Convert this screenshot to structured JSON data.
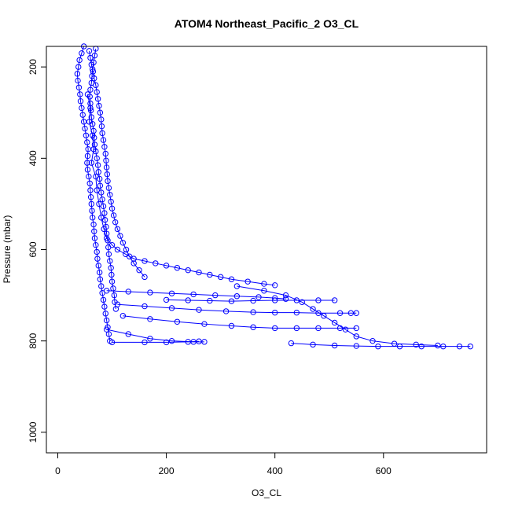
{
  "chart_data": {
    "type": "scatter",
    "title": "ATOM4 Northeast_Pacific_2 O3_CL",
    "xlabel": "O3_CL",
    "ylabel": "Pressure (mbar)",
    "xlim": [
      -21,
      790
    ],
    "ylim": [
      1045,
      155
    ],
    "y_reversed": true,
    "x_ticks": [
      0,
      200,
      400,
      600
    ],
    "y_ticks": [
      200,
      400,
      600,
      800,
      1000
    ],
    "grid": false,
    "legend": "none",
    "point_style": "open-circle-connected",
    "colors": {
      "series": "#0000ff",
      "axes": "#000000",
      "background": "#ffffff"
    },
    "series": [
      {
        "points": [
          [
            48,
            155
          ],
          [
            44,
            170
          ],
          [
            40,
            185
          ],
          [
            38,
            200
          ],
          [
            36,
            215
          ],
          [
            37,
            230
          ],
          [
            39,
            245
          ],
          [
            41,
            260
          ],
          [
            42,
            275
          ],
          [
            44,
            290
          ],
          [
            46,
            305
          ],
          [
            48,
            320
          ],
          [
            50,
            335
          ],
          [
            52,
            350
          ],
          [
            54,
            365
          ],
          [
            56,
            380
          ],
          [
            55,
            395
          ],
          [
            54,
            410
          ],
          [
            55,
            425
          ],
          [
            57,
            440
          ],
          [
            59,
            455
          ],
          [
            60,
            470
          ],
          [
            61,
            485
          ],
          [
            62,
            500
          ],
          [
            63,
            515
          ],
          [
            64,
            530
          ],
          [
            66,
            545
          ],
          [
            67,
            560
          ],
          [
            68,
            575
          ],
          [
            70,
            590
          ],
          [
            72,
            605
          ],
          [
            73,
            620
          ],
          [
            75,
            635
          ],
          [
            77,
            650
          ],
          [
            78,
            665
          ],
          [
            80,
            680
          ],
          [
            82,
            695
          ],
          [
            84,
            710
          ],
          [
            86,
            725
          ],
          [
            88,
            740
          ],
          [
            90,
            755
          ],
          [
            92,
            770
          ],
          [
            94,
            785
          ],
          [
            96,
            800
          ]
        ]
      },
      {
        "points": [
          [
            70,
            160
          ],
          [
            68,
            175
          ],
          [
            66,
            190
          ],
          [
            64,
            205
          ],
          [
            63,
            220
          ],
          [
            62,
            235
          ],
          [
            60,
            250
          ],
          [
            59,
            265
          ],
          [
            60,
            280
          ],
          [
            61,
            295
          ],
          [
            62,
            310
          ],
          [
            64,
            325
          ],
          [
            66,
            340
          ],
          [
            67,
            355
          ],
          [
            68,
            370
          ],
          [
            70,
            385
          ],
          [
            72,
            400
          ],
          [
            74,
            415
          ],
          [
            75,
            430
          ],
          [
            77,
            445
          ],
          [
            78,
            460
          ],
          [
            80,
            475
          ],
          [
            82,
            490
          ],
          [
            84,
            505
          ],
          [
            86,
            520
          ],
          [
            87,
            535
          ],
          [
            89,
            550
          ],
          [
            90,
            565
          ],
          [
            92,
            580
          ],
          [
            93,
            595
          ],
          [
            94,
            610
          ],
          [
            96,
            625
          ],
          [
            98,
            640
          ],
          [
            99,
            655
          ],
          [
            100,
            670
          ],
          [
            102,
            685
          ],
          [
            104,
            700
          ],
          [
            105,
            715
          ],
          [
            107,
            730
          ]
        ]
      },
      {
        "points": [
          [
            58,
            165
          ],
          [
            60,
            180
          ],
          [
            62,
            195
          ],
          [
            65,
            210
          ],
          [
            67,
            225
          ],
          [
            70,
            240
          ],
          [
            72,
            255
          ],
          [
            74,
            270
          ],
          [
            76,
            285
          ],
          [
            78,
            300
          ],
          [
            80,
            315
          ],
          [
            81,
            330
          ],
          [
            82,
            345
          ],
          [
            84,
            360
          ],
          [
            86,
            375
          ],
          [
            88,
            390
          ],
          [
            89,
            405
          ],
          [
            90,
            420
          ],
          [
            91,
            435
          ],
          [
            92,
            450
          ],
          [
            94,
            465
          ],
          [
            96,
            480
          ],
          [
            98,
            495
          ],
          [
            100,
            510
          ],
          [
            103,
            525
          ],
          [
            106,
            540
          ],
          [
            110,
            555
          ],
          [
            115,
            570
          ],
          [
            120,
            585
          ],
          [
            126,
            600
          ],
          [
            132,
            615
          ],
          [
            140,
            630
          ],
          [
            150,
            645
          ],
          [
            160,
            660
          ]
        ]
      },
      {
        "points": [
          [
            55,
            260
          ],
          [
            60,
            290
          ],
          [
            58,
            320
          ],
          [
            64,
            350
          ],
          [
            66,
            380
          ],
          [
            62,
            410
          ],
          [
            70,
            440
          ],
          [
            72,
            470
          ],
          [
            76,
            500
          ],
          [
            80,
            530
          ],
          [
            85,
            555
          ],
          [
            90,
            575
          ],
          [
            100,
            590
          ],
          [
            110,
            600
          ],
          [
            125,
            610
          ],
          [
            140,
            620
          ],
          [
            160,
            625
          ],
          [
            180,
            630
          ],
          [
            200,
            635
          ],
          [
            220,
            640
          ],
          [
            240,
            645
          ],
          [
            260,
            650
          ],
          [
            280,
            655
          ],
          [
            300,
            660
          ],
          [
            320,
            665
          ],
          [
            350,
            670
          ],
          [
            380,
            675
          ],
          [
            400,
            678
          ]
        ]
      },
      {
        "points": [
          [
            90,
            690
          ],
          [
            130,
            692
          ],
          [
            170,
            694
          ],
          [
            210,
            696
          ],
          [
            250,
            698
          ],
          [
            290,
            700
          ],
          [
            330,
            702
          ],
          [
            370,
            704
          ],
          [
            400,
            706
          ],
          [
            420,
            708
          ]
        ]
      },
      {
        "points": [
          [
            200,
            710
          ],
          [
            240,
            711
          ],
          [
            280,
            712
          ],
          [
            320,
            713
          ],
          [
            360,
            712
          ],
          [
            400,
            711
          ],
          [
            440,
            711
          ],
          [
            480,
            711
          ],
          [
            510,
            711
          ]
        ]
      },
      {
        "points": [
          [
            110,
            720
          ],
          [
            160,
            724
          ],
          [
            210,
            728
          ],
          [
            260,
            732
          ],
          [
            310,
            735
          ],
          [
            360,
            737
          ],
          [
            400,
            738
          ],
          [
            440,
            738
          ],
          [
            480,
            739
          ],
          [
            520,
            739
          ],
          [
            540,
            739
          ],
          [
            550,
            739
          ]
        ]
      },
      {
        "points": [
          [
            120,
            745
          ],
          [
            170,
            752
          ],
          [
            220,
            758
          ],
          [
            270,
            763
          ],
          [
            320,
            767
          ],
          [
            360,
            770
          ],
          [
            400,
            772
          ],
          [
            440,
            772
          ],
          [
            480,
            772
          ],
          [
            520,
            772
          ],
          [
            550,
            772
          ]
        ]
      },
      {
        "points": [
          [
            90,
            775
          ],
          [
            130,
            785
          ],
          [
            170,
            795
          ],
          [
            210,
            800
          ],
          [
            250,
            802
          ],
          [
            270,
            802
          ]
        ]
      },
      {
        "points": [
          [
            100,
            803
          ],
          [
            160,
            803
          ],
          [
            200,
            803
          ],
          [
            240,
            802
          ],
          [
            260,
            801
          ]
        ]
      },
      {
        "points": [
          [
            430,
            805
          ],
          [
            470,
            808
          ],
          [
            510,
            810
          ],
          [
            550,
            811
          ],
          [
            590,
            812
          ],
          [
            630,
            812
          ],
          [
            670,
            812
          ],
          [
            710,
            812
          ],
          [
            740,
            812
          ],
          [
            760,
            812
          ]
        ]
      },
      {
        "points": [
          [
            330,
            680
          ],
          [
            380,
            690
          ],
          [
            420,
            700
          ],
          [
            450,
            715
          ],
          [
            470,
            730
          ],
          [
            490,
            745
          ],
          [
            510,
            760
          ],
          [
            530,
            775
          ],
          [
            550,
            790
          ],
          [
            580,
            800
          ],
          [
            620,
            806
          ],
          [
            660,
            808
          ],
          [
            700,
            810
          ]
        ]
      }
    ]
  }
}
